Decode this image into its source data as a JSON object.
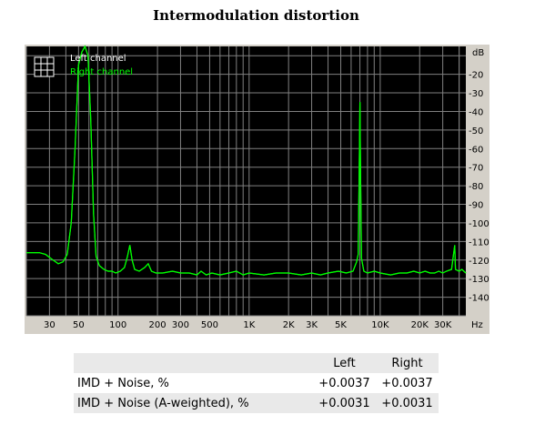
{
  "title": "Intermodulation distortion",
  "chart_data": {
    "type": "line",
    "title": "Intermodulation distortion",
    "xscale": "log",
    "xlim": [
      20,
      45000
    ],
    "ylim": [
      -150,
      -5
    ],
    "y_unit_label": "dB",
    "x_unit_label": "Hz",
    "x_tick_labels": [
      {
        "x": 30,
        "label": "30"
      },
      {
        "x": 50,
        "label": "50"
      },
      {
        "x": 100,
        "label": "100"
      },
      {
        "x": 200,
        "label": "200"
      },
      {
        "x": 300,
        "label": "300"
      },
      {
        "x": 500,
        "label": "500"
      },
      {
        "x": 1000,
        "label": "1K"
      },
      {
        "x": 2000,
        "label": "2K"
      },
      {
        "x": 3000,
        "label": "3K"
      },
      {
        "x": 5000,
        "label": "5K"
      },
      {
        "x": 10000,
        "label": "10K"
      },
      {
        "x": 20000,
        "label": "20K"
      },
      {
        "x": 30000,
        "label": "30K"
      }
    ],
    "y_ticks": [
      -20,
      -30,
      -40,
      -50,
      -60,
      -70,
      -80,
      -90,
      -100,
      -110,
      -120,
      -130,
      -140
    ],
    "grid": true,
    "legend": "top-left",
    "series": [
      {
        "name": "Left channel",
        "color": "#00ff00",
        "points": [
          [
            20,
            -116
          ],
          [
            25,
            -116
          ],
          [
            28,
            -117
          ],
          [
            32,
            -120
          ],
          [
            35,
            -122
          ],
          [
            38,
            -121
          ],
          [
            41,
            -117
          ],
          [
            44,
            -100
          ],
          [
            47,
            -60
          ],
          [
            50,
            -15
          ],
          [
            53,
            -8
          ],
          [
            56,
            -5
          ],
          [
            59,
            -10
          ],
          [
            62,
            -45
          ],
          [
            65,
            -95
          ],
          [
            68,
            -118
          ],
          [
            72,
            -123
          ],
          [
            78,
            -125
          ],
          [
            84,
            -126
          ],
          [
            90,
            -126
          ],
          [
            96,
            -127
          ],
          [
            104,
            -126
          ],
          [
            112,
            -124
          ],
          [
            118,
            -118
          ],
          [
            123,
            -112
          ],
          [
            128,
            -120
          ],
          [
            134,
            -125
          ],
          [
            145,
            -126
          ],
          [
            160,
            -124
          ],
          [
            170,
            -122
          ],
          [
            180,
            -126
          ],
          [
            195,
            -127
          ],
          [
            220,
            -127
          ],
          [
            260,
            -126
          ],
          [
            300,
            -127
          ],
          [
            350,
            -127
          ],
          [
            400,
            -128
          ],
          [
            430,
            -126
          ],
          [
            470,
            -128
          ],
          [
            520,
            -127
          ],
          [
            600,
            -128
          ],
          [
            700,
            -127
          ],
          [
            800,
            -126
          ],
          [
            900,
            -128
          ],
          [
            1000,
            -127
          ],
          [
            1300,
            -128
          ],
          [
            1600,
            -127
          ],
          [
            2000,
            -127
          ],
          [
            2500,
            -128
          ],
          [
            3000,
            -127
          ],
          [
            3500,
            -128
          ],
          [
            4000,
            -127
          ],
          [
            4800,
            -126
          ],
          [
            5500,
            -127
          ],
          [
            6200,
            -126
          ],
          [
            6600,
            -121
          ],
          [
            6800,
            -117
          ],
          [
            6950,
            -60
          ],
          [
            7000,
            -35
          ],
          [
            7050,
            -60
          ],
          [
            7200,
            -119
          ],
          [
            7500,
            -126
          ],
          [
            8000,
            -127
          ],
          [
            9000,
            -126
          ],
          [
            10000,
            -127
          ],
          [
            12000,
            -128
          ],
          [
            14000,
            -127
          ],
          [
            16000,
            -127
          ],
          [
            18000,
            -126
          ],
          [
            20000,
            -127
          ],
          [
            22000,
            -126
          ],
          [
            24000,
            -127
          ],
          [
            26000,
            -127
          ],
          [
            28000,
            -126
          ],
          [
            30000,
            -127
          ],
          [
            32000,
            -126
          ],
          [
            35000,
            -125
          ],
          [
            37000,
            -112
          ],
          [
            37500,
            -125
          ],
          [
            40000,
            -126
          ],
          [
            42000,
            -125
          ],
          [
            45000,
            -127
          ]
        ]
      },
      {
        "name": "Right channel",
        "color": "#00ff00",
        "points": [
          [
            20,
            -116
          ],
          [
            25,
            -116
          ],
          [
            28,
            -117
          ],
          [
            32,
            -120
          ],
          [
            35,
            -122
          ],
          [
            38,
            -121
          ],
          [
            41,
            -117
          ],
          [
            44,
            -100
          ],
          [
            47,
            -60
          ],
          [
            50,
            -15
          ],
          [
            53,
            -8
          ],
          [
            56,
            -5
          ],
          [
            59,
            -10
          ],
          [
            62,
            -45
          ],
          [
            65,
            -95
          ],
          [
            68,
            -118
          ],
          [
            72,
            -123
          ],
          [
            78,
            -125
          ],
          [
            84,
            -126
          ],
          [
            90,
            -126
          ],
          [
            96,
            -127
          ],
          [
            104,
            -126
          ],
          [
            112,
            -124
          ],
          [
            118,
            -118
          ],
          [
            123,
            -112
          ],
          [
            128,
            -120
          ],
          [
            134,
            -125
          ],
          [
            145,
            -126
          ],
          [
            160,
            -124
          ],
          [
            170,
            -122
          ],
          [
            180,
            -126
          ],
          [
            195,
            -127
          ],
          [
            220,
            -127
          ],
          [
            260,
            -126
          ],
          [
            300,
            -127
          ],
          [
            350,
            -127
          ],
          [
            400,
            -128
          ],
          [
            430,
            -126
          ],
          [
            470,
            -128
          ],
          [
            520,
            -127
          ],
          [
            600,
            -128
          ],
          [
            700,
            -127
          ],
          [
            800,
            -126
          ],
          [
            900,
            -128
          ],
          [
            1000,
            -127
          ],
          [
            1300,
            -128
          ],
          [
            1600,
            -127
          ],
          [
            2000,
            -127
          ],
          [
            2500,
            -128
          ],
          [
            3000,
            -127
          ],
          [
            3500,
            -128
          ],
          [
            4000,
            -127
          ],
          [
            4800,
            -126
          ],
          [
            5500,
            -127
          ],
          [
            6200,
            -126
          ],
          [
            6600,
            -121
          ],
          [
            6800,
            -117
          ],
          [
            6950,
            -60
          ],
          [
            7000,
            -35
          ],
          [
            7050,
            -60
          ],
          [
            7200,
            -119
          ],
          [
            7500,
            -126
          ],
          [
            8000,
            -127
          ],
          [
            9000,
            -126
          ],
          [
            10000,
            -127
          ],
          [
            12000,
            -128
          ],
          [
            14000,
            -127
          ],
          [
            16000,
            -127
          ],
          [
            18000,
            -126
          ],
          [
            20000,
            -127
          ],
          [
            22000,
            -126
          ],
          [
            24000,
            -127
          ],
          [
            26000,
            -127
          ],
          [
            28000,
            -126
          ],
          [
            30000,
            -127
          ],
          [
            32000,
            -126
          ],
          [
            35000,
            -125
          ],
          [
            37000,
            -112
          ],
          [
            37500,
            -125
          ],
          [
            40000,
            -126
          ],
          [
            42000,
            -125
          ],
          [
            45000,
            -127
          ]
        ]
      }
    ]
  },
  "results_table": {
    "headers": [
      "",
      "Left",
      "Right"
    ],
    "rows": [
      {
        "label": "IMD + Noise, %",
        "left": "+0.0037",
        "right": "+0.0037"
      },
      {
        "label": "IMD + Noise (A-weighted), %",
        "left": "+0.0031",
        "right": "+0.0031"
      }
    ]
  },
  "colors": {
    "plot_background": "#000000",
    "grid": "#808080",
    "frame": "#d4d0c8",
    "left_channel_text": "#ffffff",
    "right_channel_text": "#00ff00",
    "trace": "#00ff00"
  }
}
